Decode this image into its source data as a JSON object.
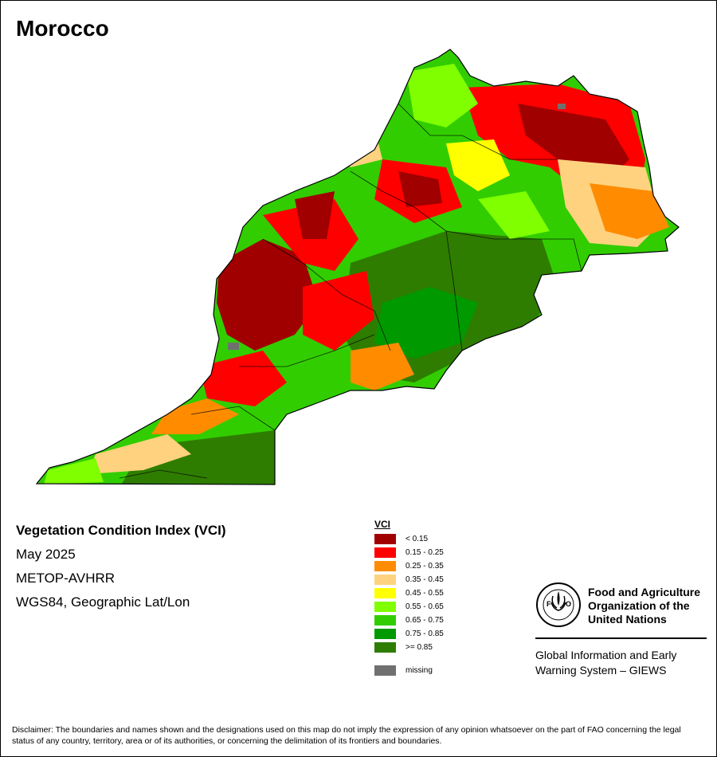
{
  "map_title": "Morocco",
  "info": {
    "index_name": "Vegetation Condition Index (VCI)",
    "period": "May 2025",
    "sensor": "METOP-AVHRR",
    "projection": "WGS84, Geographic Lat/Lon"
  },
  "legend": {
    "title": "VCI",
    "classes": [
      {
        "label": "< 0.15",
        "color": "#a00000"
      },
      {
        "label": "0.15 - 0.25",
        "color": "#ff0000"
      },
      {
        "label": "0.25 - 0.35",
        "color": "#ff8c00"
      },
      {
        "label": "0.35 - 0.45",
        "color": "#ffd27f"
      },
      {
        "label": "0.45 - 0.55",
        "color": "#ffff00"
      },
      {
        "label": "0.55 - 0.65",
        "color": "#7fff00"
      },
      {
        "label": "0.65 - 0.75",
        "color": "#32cd00"
      },
      {
        "label": "0.75 - 0.85",
        "color": "#009900"
      },
      {
        "label": ">= 0.85",
        "color": "#2e7d00"
      }
    ],
    "missing": {
      "label": "missing",
      "color": "#707070"
    }
  },
  "org": {
    "logo_icon": "fao-logo-icon",
    "name": "Food and Agriculture Organization of the United Nations",
    "system": "Global Information and Early Warning System – GIEWS"
  },
  "disclaimer": "Disclaimer: The boundaries and names shown and the designations used on this map do not imply the expression of any opinion whatsoever on the part of FAO concerning the legal status of any country, territory, area or of its authorities, or concerning the delimitation of its frontiers and boundaries."
}
